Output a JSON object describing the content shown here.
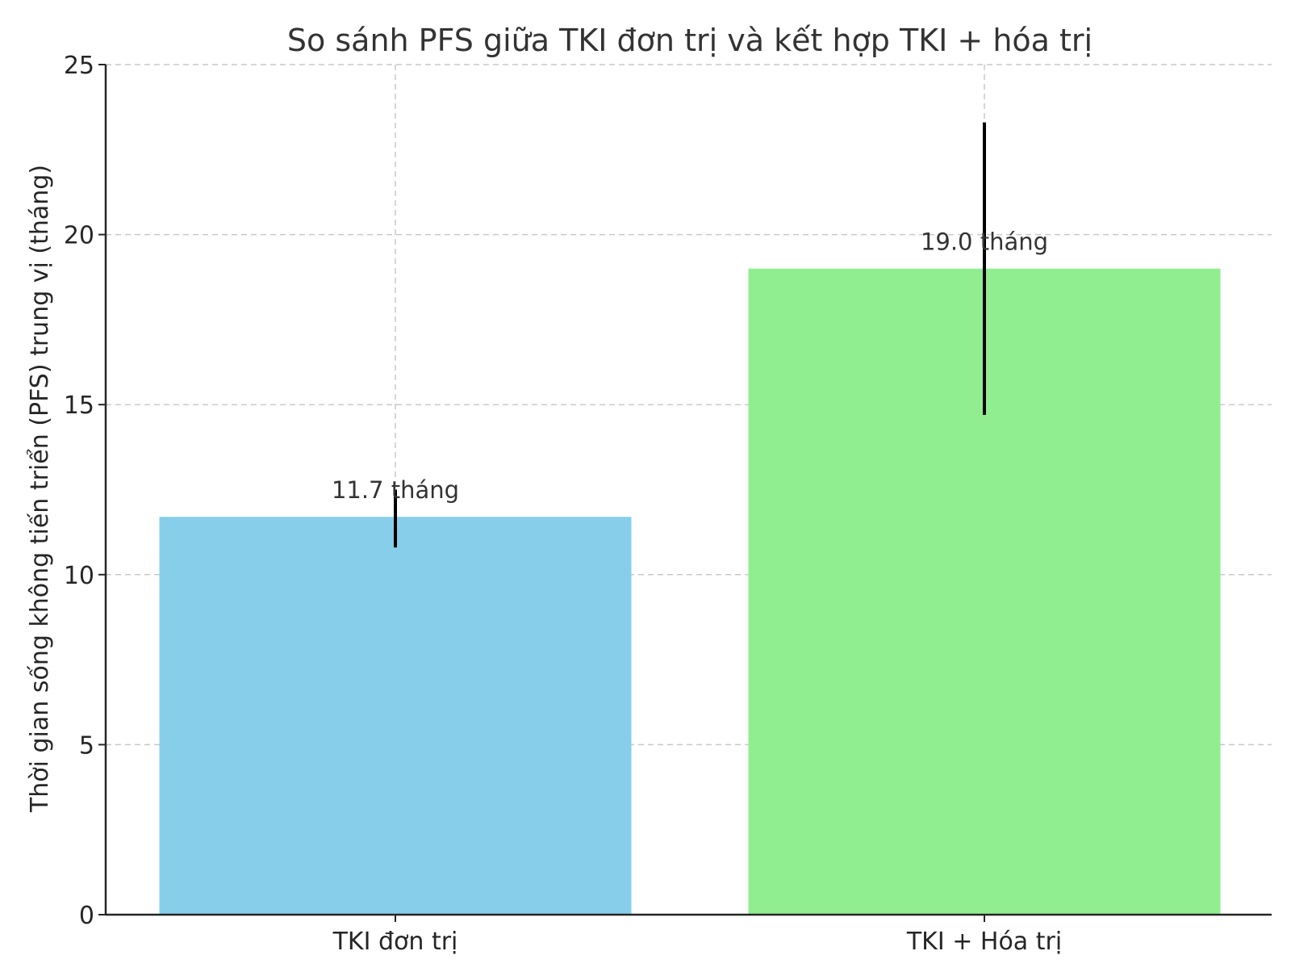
{
  "chart_data": {
    "type": "bar",
    "title": "So sánh PFS giữa TKI đơn trị và kết hợp TKI + hóa trị",
    "xlabel": "",
    "ylabel": "Thời gian sống không tiến triển (PFS) trung vị (tháng)",
    "categories": [
      "TKI đơn trị",
      "TKI + Hóa trị"
    ],
    "values": [
      11.7,
      19.0
    ],
    "error_low": [
      10.8,
      14.7
    ],
    "error_high": [
      12.5,
      23.3
    ],
    "data_labels": [
      "11.7 tháng",
      "19.0 tháng"
    ],
    "colors": [
      "#87ceeb",
      "#90ee90"
    ],
    "ylim": [
      0,
      25
    ],
    "yticks": [
      0,
      5,
      10,
      15,
      20,
      25
    ],
    "grid": true,
    "legend": "none"
  }
}
